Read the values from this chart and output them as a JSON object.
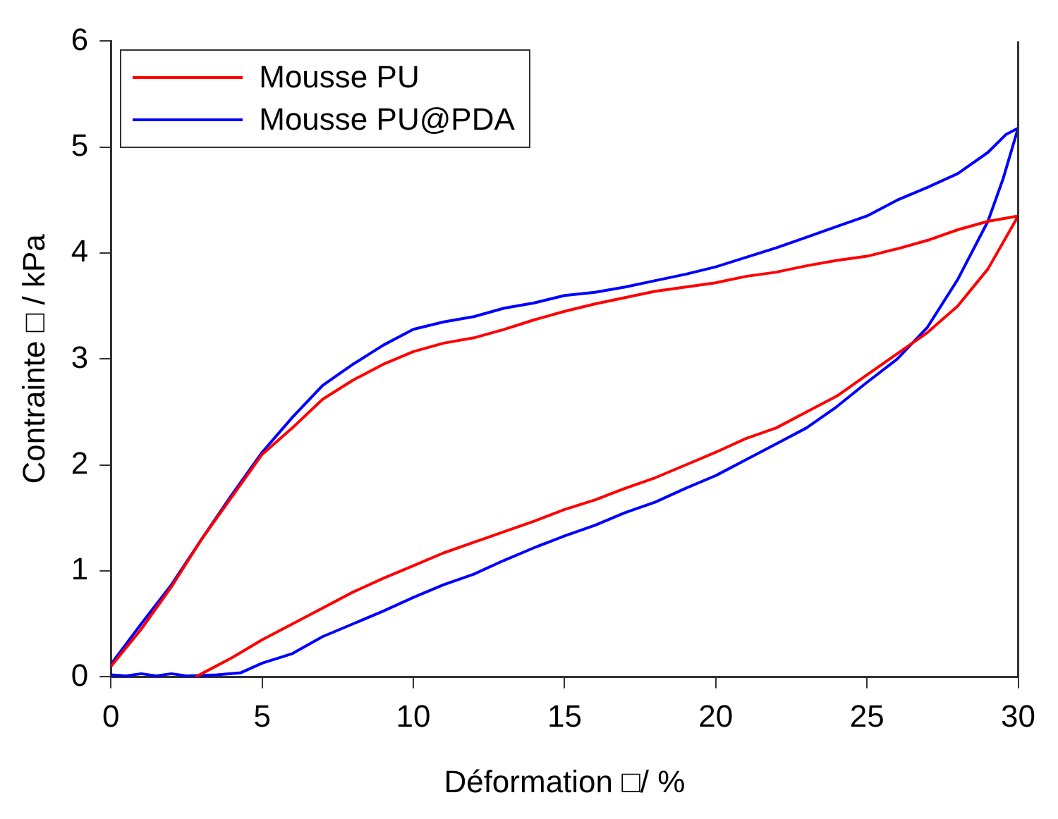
{
  "chart_data": {
    "type": "line",
    "xlabel": "Déformation □/ %",
    "ylabel": "Contrainte □ / kPa",
    "xlim": [
      0,
      30
    ],
    "xticks": [
      0,
      5,
      10,
      15,
      20,
      25,
      30
    ],
    "ylim": [
      0,
      6
    ],
    "yticks": [
      0,
      1,
      2,
      3,
      4,
      5,
      6
    ],
    "grid": false,
    "legend": "top left",
    "marker": "none",
    "line_style": "solid",
    "series": [
      {
        "name": "Mousse PU",
        "color": "#ff0000",
        "x": [
          0,
          1,
          2,
          3,
          4,
          5,
          6,
          7,
          8,
          9,
          10,
          11,
          12,
          13,
          14,
          15,
          16,
          17,
          18,
          19,
          20,
          21,
          22,
          23,
          24,
          25,
          26,
          27,
          28,
          29,
          30,
          29,
          28,
          27,
          26,
          25,
          24,
          23,
          22,
          21,
          20,
          19,
          18,
          17,
          16,
          15,
          14,
          13,
          12,
          11,
          10,
          9,
          8,
          7,
          6,
          5,
          4,
          3,
          2.8
        ],
        "values": [
          0.1,
          0.45,
          0.85,
          1.3,
          1.7,
          2.1,
          2.35,
          2.62,
          2.8,
          2.95,
          3.07,
          3.15,
          3.2,
          3.28,
          3.37,
          3.45,
          3.52,
          3.58,
          3.64,
          3.68,
          3.72,
          3.78,
          3.82,
          3.88,
          3.93,
          3.97,
          4.04,
          4.12,
          4.22,
          4.3,
          4.35,
          3.85,
          3.5,
          3.25,
          3.05,
          2.85,
          2.65,
          2.5,
          2.35,
          2.25,
          2.12,
          2.0,
          1.88,
          1.78,
          1.67,
          1.58,
          1.47,
          1.37,
          1.27,
          1.17,
          1.05,
          0.93,
          0.8,
          0.65,
          0.5,
          0.35,
          0.18,
          0.03,
          0
        ]
      },
      {
        "name": "Mousse PU@PDA",
        "color": "#0000ff",
        "x": [
          0,
          1,
          2,
          3,
          4,
          5,
          6,
          7,
          8,
          9,
          10,
          11,
          12,
          13,
          14,
          15,
          16,
          17,
          18,
          19,
          20,
          21,
          22,
          23,
          24,
          25,
          26,
          27,
          28,
          29,
          29.6,
          30,
          29.5,
          29,
          28,
          27,
          26,
          25,
          24,
          23,
          22,
          21,
          20,
          19,
          18,
          17,
          16,
          15,
          14,
          13,
          12,
          11,
          10,
          9,
          8,
          7,
          6,
          5,
          4.3,
          3.5,
          2.5,
          2,
          1.5,
          1,
          0.5,
          0
        ],
        "values": [
          0.12,
          0.5,
          0.87,
          1.3,
          1.72,
          2.12,
          2.45,
          2.75,
          2.95,
          3.13,
          3.28,
          3.35,
          3.4,
          3.48,
          3.53,
          3.6,
          3.63,
          3.68,
          3.74,
          3.8,
          3.87,
          3.96,
          4.05,
          4.15,
          4.25,
          4.35,
          4.5,
          4.62,
          4.75,
          4.95,
          5.12,
          5.18,
          4.7,
          4.3,
          3.75,
          3.3,
          3.0,
          2.78,
          2.55,
          2.35,
          2.2,
          2.05,
          1.9,
          1.78,
          1.65,
          1.55,
          1.43,
          1.33,
          1.22,
          1.1,
          0.97,
          0.87,
          0.75,
          0.62,
          0.5,
          0.38,
          0.22,
          0.13,
          0.04,
          0.02,
          0.01,
          0.03,
          0.01,
          0.03,
          0.01,
          0.02
        ]
      }
    ]
  }
}
